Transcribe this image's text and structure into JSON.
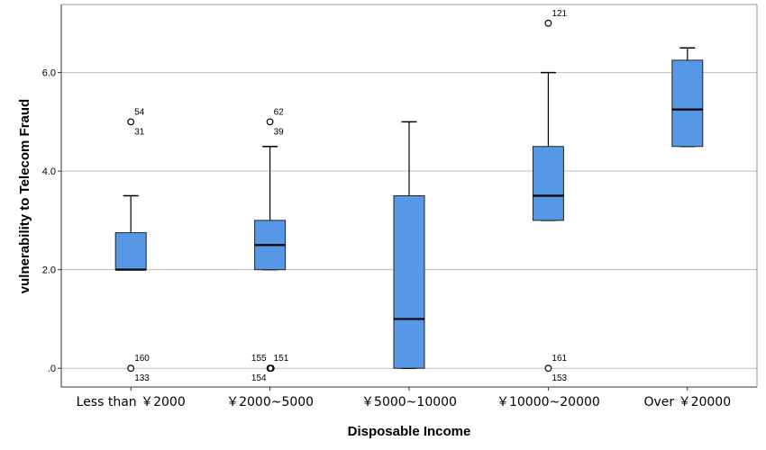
{
  "chart_data": {
    "type": "box",
    "xlabel": "Disposable Income",
    "ylabel": "vulnerability to Telecom Fraud",
    "ylim": [
      -0.38,
      7.38
    ],
    "yticks": [
      {
        "value": 0,
        "label": ".0"
      },
      {
        "value": 2,
        "label": "2.0"
      },
      {
        "value": 4,
        "label": "4.0"
      },
      {
        "value": 6,
        "label": "6.0"
      }
    ],
    "grid": "horizontal",
    "box_color": "#5698e6",
    "categories": [
      "Less than ￥2000",
      "￥2000~5000",
      "￥5000~10000",
      "￥10000~20000",
      "Over ￥20000"
    ],
    "boxes": [
      {
        "whisker_low": 2.0,
        "q1": 2.0,
        "median": 2.0,
        "q3": 2.75,
        "whisker_high": 3.5,
        "outliers": [
          {
            "value": 5,
            "labels": [
              "54",
              "31"
            ]
          },
          {
            "value": 0,
            "labels": [
              "160",
              "133"
            ]
          }
        ]
      },
      {
        "whisker_low": 2.0,
        "q1": 2.0,
        "median": 2.5,
        "q3": 3.0,
        "whisker_high": 4.5,
        "outliers": [
          {
            "value": 5,
            "labels": [
              "62",
              "39"
            ]
          },
          {
            "value": 0,
            "labels": [
              "155",
              "151",
              "154"
            ]
          }
        ]
      },
      {
        "whisker_low": 0.0,
        "q1": 0.0,
        "median": 1.0,
        "q3": 3.5,
        "whisker_high": 5.0,
        "outliers": []
      },
      {
        "whisker_low": 3.0,
        "q1": 3.0,
        "median": 3.5,
        "q3": 4.5,
        "whisker_high": 6.0,
        "outliers": [
          {
            "value": 7,
            "labels": [
              "121"
            ]
          },
          {
            "value": 0,
            "labels": [
              "161",
              "153"
            ]
          }
        ]
      },
      {
        "whisker_low": 4.5,
        "q1": 4.5,
        "median": 5.25,
        "q3": 6.25,
        "whisker_high": 6.5,
        "outliers": []
      }
    ]
  }
}
